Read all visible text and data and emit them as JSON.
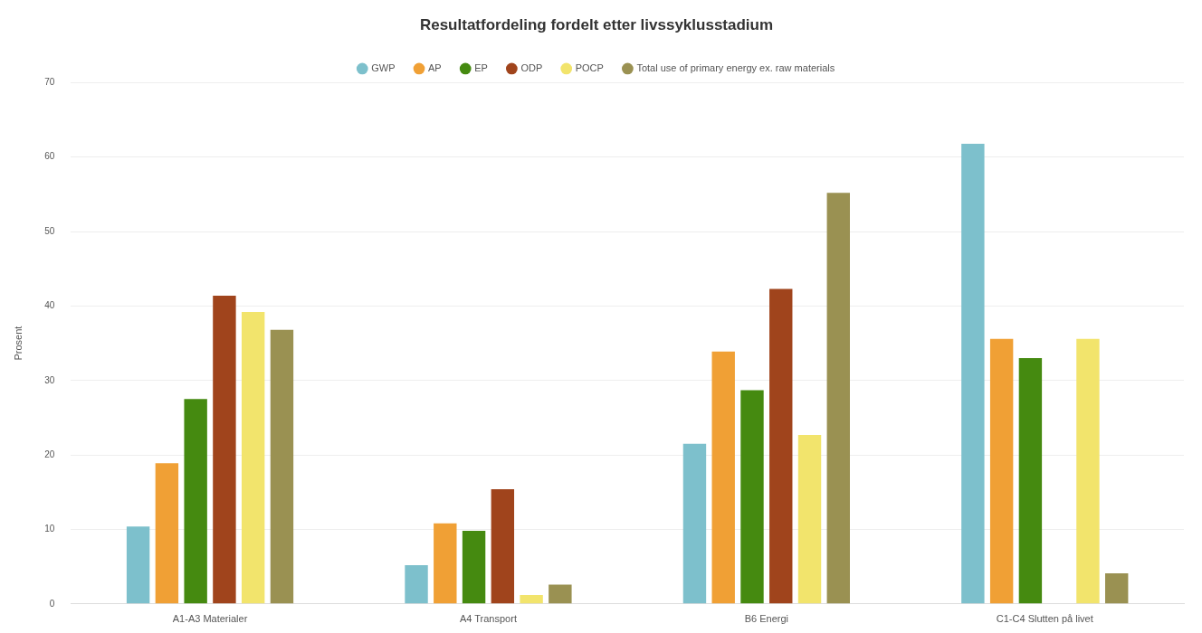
{
  "chart_data": {
    "type": "bar",
    "title": "Resultatfordeling fordelt etter livssyklusstadium",
    "ylabel": "Prosent",
    "categories": [
      "A1-A3 Materialer",
      "A4 Transport",
      "B6 Energi",
      "C1-C4 Slutten på livet"
    ],
    "series": [
      {
        "name": "GWP",
        "color": "#7dc0cc",
        "values": [
          10.4,
          5.2,
          21.5,
          61.8
        ]
      },
      {
        "name": "AP",
        "color": "#f0a035",
        "values": [
          18.9,
          10.8,
          33.9,
          35.6
        ]
      },
      {
        "name": "EP",
        "color": "#458a10",
        "values": [
          27.5,
          9.8,
          28.7,
          33.0
        ]
      },
      {
        "name": "ODP",
        "color": "#a0441c",
        "values": [
          41.4,
          15.4,
          42.3,
          null
        ]
      },
      {
        "name": "POCP",
        "color": "#f2e46c",
        "values": [
          39.2,
          1.2,
          22.7,
          35.6
        ]
      },
      {
        "name": "Total use of primary energy ex. raw materials",
        "color": "#9a9152",
        "values": [
          36.8,
          2.6,
          55.2,
          4.1
        ]
      }
    ],
    "ylim": [
      0,
      70
    ],
    "yticks": [
      0,
      10,
      20,
      30,
      40,
      50,
      60,
      70
    ],
    "grid": "y",
    "legend": "top"
  }
}
